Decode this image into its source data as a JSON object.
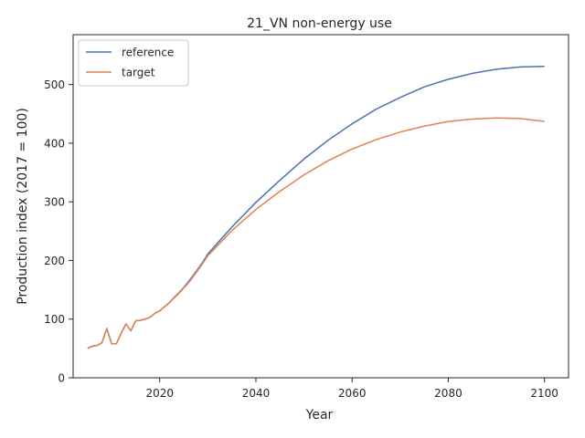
{
  "chart_data": {
    "type": "line",
    "title": "21_VN non-energy use",
    "xlabel": "Year",
    "ylabel": "Production index (2017 = 100)",
    "xlim": [
      2002,
      2105
    ],
    "ylim": [
      0,
      585
    ],
    "xticks": [
      2020,
      2040,
      2060,
      2080,
      2100
    ],
    "yticks": [
      0,
      100,
      200,
      300,
      400,
      500
    ],
    "grid": false,
    "legend_position": "upper left",
    "series": [
      {
        "name": "reference",
        "color": "#4c72b0",
        "x": [
          2005,
          2006,
          2007,
          2008,
          2009,
          2010,
          2011,
          2012,
          2013,
          2014,
          2015,
          2016,
          2017,
          2018,
          2019,
          2020,
          2021,
          2022,
          2023,
          2024,
          2025,
          2026,
          2027,
          2028,
          2029,
          2030,
          2035,
          2040,
          2045,
          2050,
          2055,
          2060,
          2065,
          2070,
          2075,
          2080,
          2085,
          2090,
          2095,
          2100
        ],
        "y": [
          50,
          54,
          55,
          60,
          84,
          58,
          58,
          76,
          92,
          80,
          97,
          98,
          100,
          103,
          110,
          114,
          121,
          128,
          137,
          145,
          154,
          164,
          175,
          186,
          198,
          211,
          257,
          299,
          337,
          373,
          405,
          433,
          458,
          478,
          496,
          509,
          519,
          526,
          530,
          531
        ]
      },
      {
        "name": "target",
        "color": "#dd8452",
        "x": [
          2005,
          2006,
          2007,
          2008,
          2009,
          2010,
          2011,
          2012,
          2013,
          2014,
          2015,
          2016,
          2017,
          2018,
          2019,
          2020,
          2021,
          2022,
          2023,
          2024,
          2025,
          2026,
          2027,
          2028,
          2029,
          2030,
          2035,
          2040,
          2045,
          2050,
          2055,
          2060,
          2065,
          2070,
          2075,
          2080,
          2085,
          2090,
          2095,
          2100
        ],
        "y": [
          50,
          54,
          55,
          60,
          84,
          58,
          58,
          76,
          92,
          80,
          97,
          98,
          100,
          103,
          110,
          114,
          121,
          128,
          136,
          144,
          153,
          162,
          173,
          184,
          196,
          208,
          251,
          287,
          318,
          346,
          370,
          390,
          406,
          419,
          429,
          437,
          441,
          443,
          442,
          437
        ]
      }
    ]
  }
}
